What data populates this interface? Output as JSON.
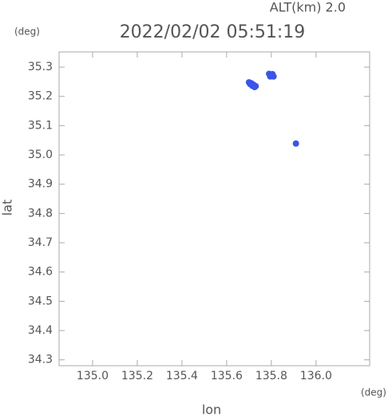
{
  "chart_data": {
    "type": "scatter",
    "title": "2022/02/02 05:51:19",
    "subtitle": "ALT(km) 2.0",
    "y_unit": "(deg)",
    "x_unit": "(deg)",
    "x_label": "lon",
    "y_label": "lat",
    "xlim": [
      134.85,
      136.24
    ],
    "ylim": [
      34.28,
      35.352
    ],
    "xticks": [
      {
        "value": 135.0,
        "label": "135.0"
      },
      135.2,
      135.4,
      135.6,
      135.8,
      {
        "value": 136.0,
        "label": "136.0"
      }
    ],
    "yticks": [
      34.3,
      34.4,
      34.5,
      34.6,
      34.7,
      34.8,
      34.9,
      {
        "value": 35.0,
        "label": "35.0"
      },
      35.1,
      35.2,
      35.3
    ],
    "series": [
      {
        "color": "#3a55e8",
        "x": [
          135.7,
          135.71,
          135.72,
          135.73,
          135.715,
          135.725,
          135.705,
          135.79,
          135.8,
          135.81,
          135.795,
          135.805,
          135.91
        ],
        "values": [
          35.248,
          35.245,
          35.24,
          35.235,
          35.236,
          35.232,
          35.242,
          35.277,
          35.272,
          35.268,
          35.268,
          35.276,
          35.039
        ]
      }
    ]
  }
}
